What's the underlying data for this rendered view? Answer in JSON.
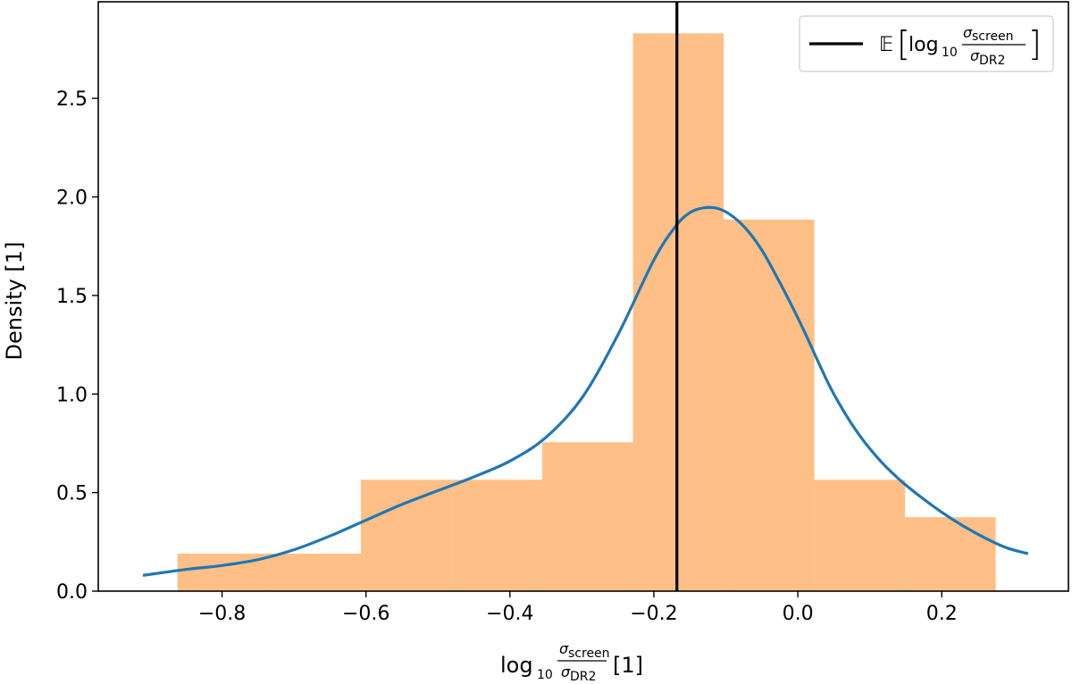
{
  "chart_data": {
    "type": "bar",
    "bins": [
      {
        "x0": -0.862,
        "x1": -0.735,
        "value": 0.19
      },
      {
        "x0": -0.735,
        "x1": -0.607,
        "value": 0.19
      },
      {
        "x0": -0.607,
        "x1": -0.481,
        "value": 0.565
      },
      {
        "x0": -0.481,
        "x1": -0.355,
        "value": 0.565
      },
      {
        "x0": -0.355,
        "x1": -0.229,
        "value": 0.755
      },
      {
        "x0": -0.229,
        "x1": -0.103,
        "value": 2.83
      },
      {
        "x0": -0.103,
        "x1": 0.023,
        "value": 1.885
      },
      {
        "x0": 0.023,
        "x1": 0.149,
        "value": 0.565
      },
      {
        "x0": 0.149,
        "x1": 0.275,
        "value": 0.375
      }
    ],
    "bar_color": "#ffbf86",
    "kde": {
      "color": "#1f77b4",
      "x": [
        -0.91,
        -0.85,
        -0.8,
        -0.75,
        -0.7,
        -0.65,
        -0.6,
        -0.55,
        -0.5,
        -0.45,
        -0.4,
        -0.35,
        -0.3,
        -0.25,
        -0.2,
        -0.17,
        -0.15,
        -0.13,
        -0.11,
        -0.09,
        -0.07,
        -0.05,
        -0.03,
        -0.01,
        0.01,
        0.03,
        0.05,
        0.08,
        0.11,
        0.14,
        0.17,
        0.2,
        0.23,
        0.26,
        0.29,
        0.32
      ],
      "y": [
        0.08,
        0.11,
        0.13,
        0.16,
        0.21,
        0.28,
        0.36,
        0.44,
        0.51,
        0.58,
        0.66,
        0.78,
        0.98,
        1.3,
        1.68,
        1.85,
        1.92,
        1.945,
        1.94,
        1.9,
        1.83,
        1.73,
        1.6,
        1.46,
        1.31,
        1.15,
        1.0,
        0.82,
        0.68,
        0.57,
        0.48,
        0.4,
        0.33,
        0.27,
        0.22,
        0.19
      ]
    },
    "mean_line": {
      "x": -0.168,
      "color": "#000000"
    },
    "xlim": [
      -0.972,
      0.376
    ],
    "ylim": [
      0.0,
      2.99
    ],
    "xticks": [
      -0.8,
      -0.6,
      -0.4,
      -0.2,
      0.0,
      0.2
    ],
    "xtick_labels": [
      "−0.8",
      "−0.6",
      "−0.4",
      "−0.2",
      "0.0",
      "0.2"
    ],
    "yticks": [
      0.0,
      0.5,
      1.0,
      1.5,
      2.0,
      2.5
    ],
    "ytick_labels": [
      "0.0",
      "0.5",
      "1.0",
      "1.5",
      "2.0",
      "2.5"
    ],
    "xlabel": {
      "log": "log",
      "base": "10",
      "num": "σ",
      "num_sub": "screen",
      "den": "σ",
      "den_sub": "DR2",
      "unit": "[1]"
    },
    "ylabel": "Density [1]",
    "legend": {
      "placement": "top-right",
      "entry": {
        "E": "𝔼",
        "log": "log",
        "base": "10",
        "num": "σ",
        "num_sub": "screen",
        "den": "σ",
        "den_sub": "DR2"
      }
    }
  }
}
